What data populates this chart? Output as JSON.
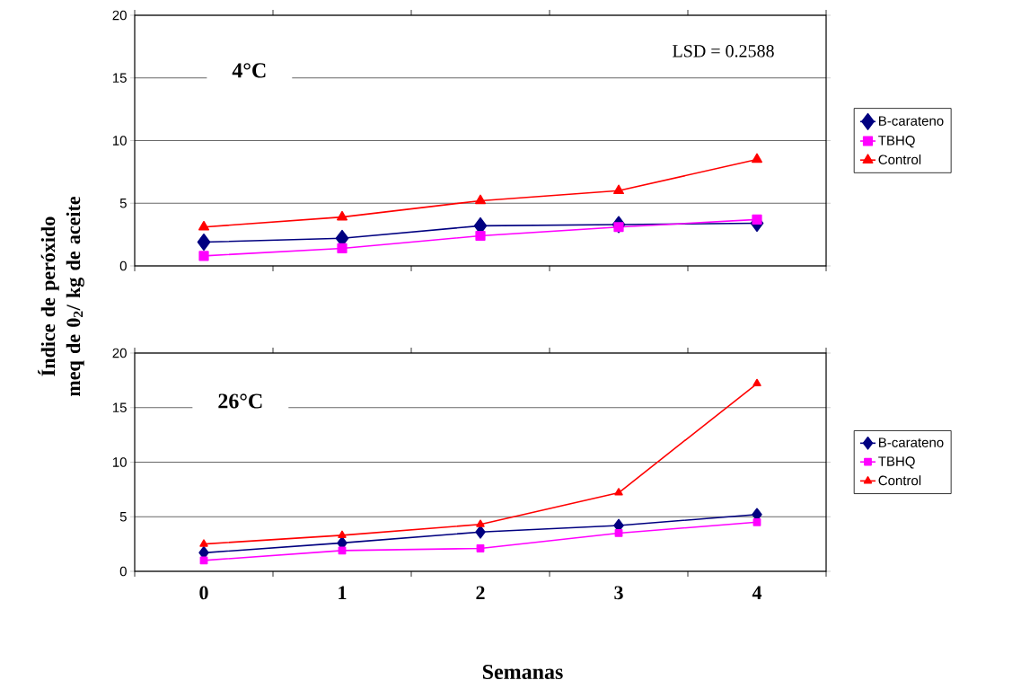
{
  "chart_data": [
    {
      "type": "line",
      "title": "4°C",
      "ylabel": "Índice de peróxido meq de 0$_{2}$/ kg de aceite",
      "annotations": [
        "LSD = 0.2588"
      ],
      "categories": [
        "0",
        "1",
        "2",
        "3",
        "4"
      ],
      "tick_labels": "y",
      "ylim": [
        0,
        20
      ],
      "yticks": [
        0,
        5,
        10,
        15,
        20
      ],
      "grid": "y",
      "legend": "right",
      "line_style": "solid",
      "series": [
        {
          "name": "B-carateno",
          "color": "#000080",
          "marker": "diamond",
          "values": [
            1.9,
            2.2,
            3.2,
            3.3,
            3.4
          ]
        },
        {
          "name": "TBHQ",
          "color": "#ff00ff",
          "marker": "square",
          "values": [
            0.8,
            1.4,
            2.4,
            3.1,
            3.7
          ]
        },
        {
          "name": "Control",
          "color": "#ff0000",
          "marker": "triangle",
          "values": [
            3.1,
            3.9,
            5.2,
            6.0,
            8.5
          ]
        }
      ]
    },
    {
      "type": "line",
      "title": "26°C",
      "xlabel": "Semanas",
      "categories": [
        "0",
        "1",
        "2",
        "3",
        "4"
      ],
      "ylim": [
        0,
        20
      ],
      "yticks": [
        0,
        5,
        10,
        15,
        20
      ],
      "grid": "y",
      "legend": "right",
      "line_style": "solid",
      "series": [
        {
          "name": "B-carateno",
          "color": "#000080",
          "marker": "diamond",
          "values": [
            1.7,
            2.6,
            3.6,
            4.2,
            5.2
          ]
        },
        {
          "name": "TBHQ",
          "color": "#ff00ff",
          "marker": "square",
          "values": [
            1.0,
            1.9,
            2.1,
            3.5,
            4.5
          ]
        },
        {
          "name": "Control",
          "color": "#ff0000",
          "marker": "triangle",
          "values": [
            2.5,
            3.3,
            4.3,
            7.2,
            17.2
          ]
        }
      ]
    }
  ]
}
